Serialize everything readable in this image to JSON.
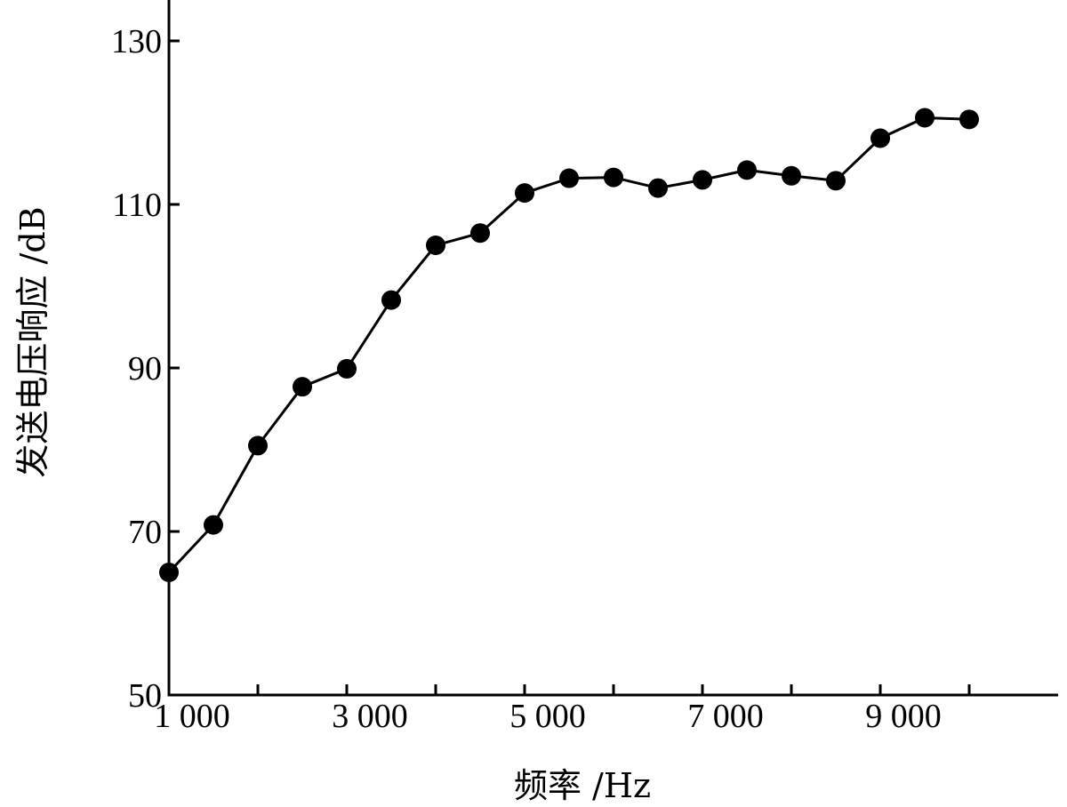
{
  "chart_data": {
    "type": "line",
    "title": "",
    "xlabel": "频率 /Hz",
    "ylabel": "发送电压响应 /dB",
    "xlim": [
      1000,
      11000
    ],
    "ylim": [
      50,
      130
    ],
    "x_ticks": [
      {
        "value": 1000,
        "label": "1 000"
      },
      {
        "value": 3000,
        "label": "3 000"
      },
      {
        "value": 5000,
        "label": "5 000"
      },
      {
        "value": 7000,
        "label": "7 000"
      },
      {
        "value": 9000,
        "label": "9 000"
      }
    ],
    "x_minor_ticks": [
      2000,
      4000,
      6000,
      8000,
      10000
    ],
    "y_ticks": [
      {
        "value": 50,
        "label": "50"
      },
      {
        "value": 70,
        "label": "70"
      },
      {
        "value": 90,
        "label": "90"
      },
      {
        "value": 110,
        "label": "110"
      },
      {
        "value": 130,
        "label": "130"
      }
    ],
    "grid": false,
    "legend": "none",
    "series": [
      {
        "x": [
          1000,
          1500,
          2000,
          2500,
          3000,
          3500,
          4000,
          4500,
          5000,
          5500,
          6000,
          6500,
          7000,
          7500,
          8000,
          8500,
          9000,
          9500,
          10000
        ],
        "y": [
          65.0,
          70.8,
          80.5,
          87.7,
          89.9,
          98.3,
          105.0,
          106.5,
          111.4,
          113.2,
          113.3,
          112.0,
          113.0,
          114.2,
          113.5,
          112.9,
          118.1,
          120.6,
          120.4
        ],
        "color": "#000000",
        "marker": "filled-circle"
      }
    ]
  }
}
